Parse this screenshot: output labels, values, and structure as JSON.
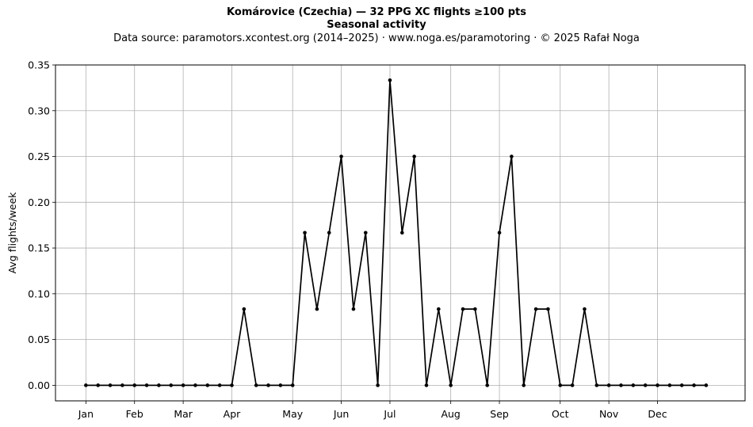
{
  "chart_data": {
    "type": "line",
    "title": "Komárovice (Czechia)  —  32 PPG XC flights ≥100 pts",
    "title2": "Seasonal activity",
    "subtitle": "Data source: paramotors.xcontest.org (2014–2025)  ·  www.noga.es/paramotoring  ·  © 2025 Rafał Noga",
    "xlabel": "",
    "ylabel": "Avg flights/week",
    "ylim": [
      -0.017,
      0.35
    ],
    "yticks": [
      0.0,
      0.05,
      0.1,
      0.15,
      0.2,
      0.25,
      0.3,
      0.35
    ],
    "ytick_labels": [
      "0.00",
      "0.05",
      "0.10",
      "0.15",
      "0.20",
      "0.25",
      "0.30",
      "0.35"
    ],
    "xlim": [
      -2.5,
      54.2
    ],
    "xticks": [
      0,
      4,
      8,
      12,
      17,
      21,
      25,
      30,
      34,
      39,
      43,
      47
    ],
    "xtick_labels": [
      "Jan",
      "Feb",
      "Mar",
      "Apr",
      "May",
      "Jun",
      "Jul",
      "Aug",
      "Sep",
      "Oct",
      "Nov",
      "Dec"
    ],
    "grid": true,
    "color": "#000000",
    "series": [
      {
        "x": [
          0,
          1,
          2,
          3,
          4,
          5,
          6,
          7,
          8,
          9,
          10,
          11,
          12,
          13,
          14,
          15,
          16,
          17,
          18,
          19,
          20,
          21,
          22,
          23,
          24,
          25,
          26,
          27,
          28,
          29,
          30,
          31,
          32,
          33,
          34,
          35,
          36,
          37,
          38,
          39,
          40,
          41,
          42,
          43,
          44,
          45,
          46,
          47,
          48,
          49,
          50,
          51
        ],
        "values": [
          0,
          0,
          0,
          0,
          0,
          0,
          0,
          0,
          0,
          0,
          0,
          0,
          0,
          0.0833,
          0,
          0,
          0,
          0,
          0.1667,
          0.0833,
          0.1667,
          0.25,
          0.0833,
          0.1667,
          0,
          0.3333,
          0.1667,
          0.25,
          0,
          0.0833,
          0,
          0.0833,
          0.0833,
          0,
          0.1667,
          0.25,
          0,
          0.0833,
          0.0833,
          0,
          0,
          0.0833,
          0,
          0,
          0,
          0,
          0,
          0,
          0,
          0,
          0,
          0
        ]
      }
    ]
  }
}
